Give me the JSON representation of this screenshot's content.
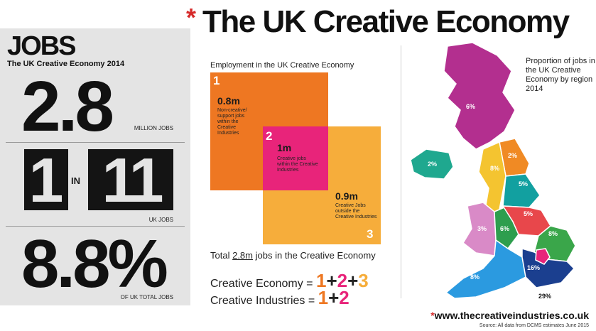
{
  "header": {
    "asterisk": "*",
    "title": "The UK Creative Economy"
  },
  "jobs": {
    "title": "JOBS",
    "subtitle": "The UK Creative Economy 2014",
    "stat1": {
      "value": "2.8",
      "label": "MILLION JOBS"
    },
    "stat2": {
      "numerator": "1",
      "in": "IN",
      "denominator": "11",
      "label": "UK JOBS"
    },
    "stat3": {
      "value": "8.8%",
      "label": "OF UK TOTAL JOBS"
    }
  },
  "employment": {
    "title": "Employment in the UK Creative Economy",
    "groups": [
      {
        "number": "1",
        "value": "0.8m",
        "description": "Non-creative/ support jobs within the Creative Industries",
        "color": "#ee7722"
      },
      {
        "number": "2",
        "value": "1m",
        "description": "Creative jobs within the Creative Industries",
        "color": "#e8247a"
      },
      {
        "number": "3",
        "value": "0.9m",
        "description": "Creative Jobs outside the Creative Industries",
        "color": "#f6ad3b"
      }
    ],
    "total_prefix": "Total",
    "total_figure": "2.8m",
    "total_suffix": "jobs in the Creative Economy",
    "formula1": {
      "label": "Creative Economy =",
      "n1": "1",
      "plus1": "+",
      "n2": "2",
      "plus2": "+",
      "n3": "3"
    },
    "formula2": {
      "label": "Creative Industries =",
      "n1": "1",
      "plus1": "+",
      "n2": "2"
    }
  },
  "map": {
    "title": "Proportion of jobs in the UK Creative Economy by region 2014",
    "regions": [
      {
        "name": "Scotland",
        "value": "6%",
        "color": "#b32f8f"
      },
      {
        "name": "Northern Ireland",
        "value": "2%",
        "color": "#1fa88f"
      },
      {
        "name": "North East",
        "value": "2%",
        "color": "#f08a24"
      },
      {
        "name": "North West",
        "value": "8%",
        "color": "#f4c430"
      },
      {
        "name": "Yorkshire and the Humber",
        "value": "5%",
        "color": "#12a0a0"
      },
      {
        "name": "Wales",
        "value": "3%",
        "color": "#d98ac7"
      },
      {
        "name": "West Midlands",
        "value": "6%",
        "color": "#2e9e4e"
      },
      {
        "name": "East Midlands",
        "value": "5%",
        "color": "#e8474b"
      },
      {
        "name": "East of England",
        "value": "8%",
        "color": "#3aa64a"
      },
      {
        "name": "South West",
        "value": "8%",
        "color": "#2b9ae0"
      },
      {
        "name": "South East",
        "value": "16%",
        "color": "#1b3f8f"
      },
      {
        "name": "London",
        "value": "29%",
        "color": "#e8247a"
      }
    ]
  },
  "footer": {
    "asterisk": "*",
    "url": "www.thecreativeindustries.co.uk",
    "source": "Source: All data from DCMS estimates June 2015"
  }
}
